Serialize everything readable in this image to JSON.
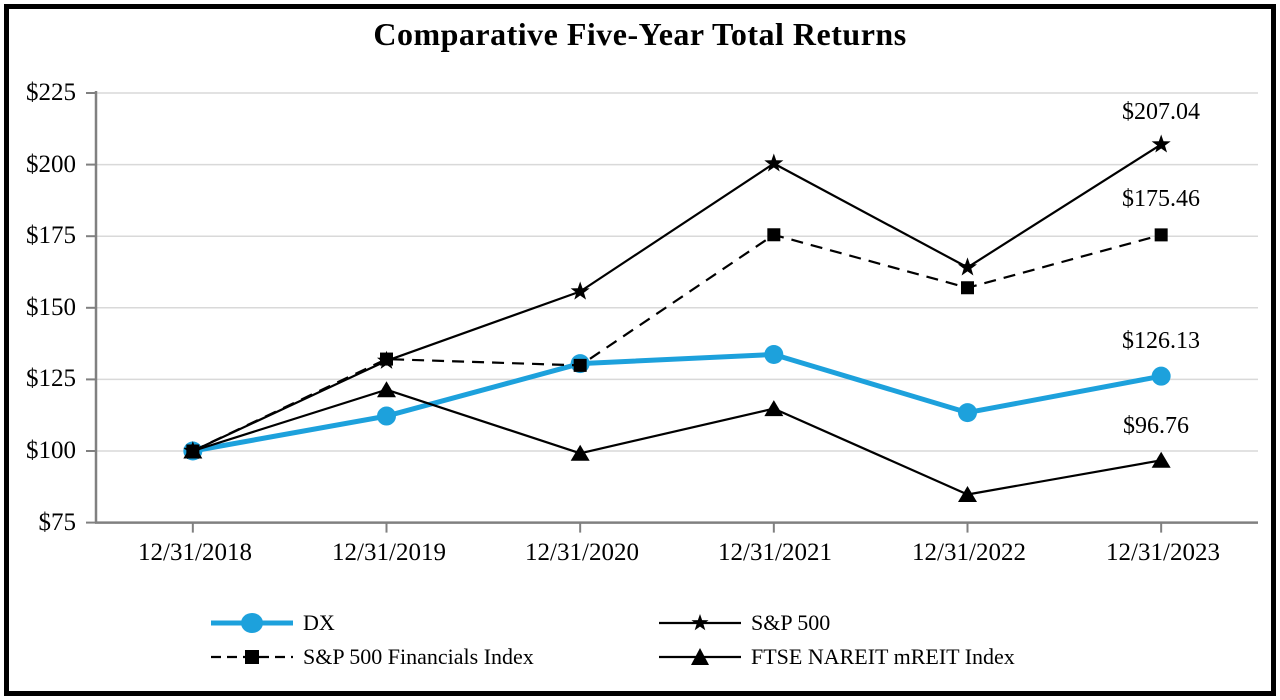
{
  "title": "Comparative Five-Year Total Returns",
  "chart_data": {
    "type": "line",
    "title": "Comparative Five-Year Total Returns",
    "x_labels": [
      "12/31/2018",
      "12/31/2019",
      "12/31/2020",
      "12/31/2021",
      "12/31/2022",
      "12/31/2023"
    ],
    "y_tick_labels": [
      "$225",
      "$200",
      "$175",
      "$150",
      "$125",
      "$100",
      "$75"
    ],
    "ylim": [
      75,
      225
    ],
    "y_step": 25,
    "grid": true,
    "legend_position": "bottom",
    "axis_color": "#808080",
    "gridline_color": "#D9D9D9",
    "series": [
      {
        "name": "DX",
        "color": "#1DA1DC",
        "line": "solid",
        "marker": "circle",
        "values": [
          100.0,
          112.2,
          130.5,
          133.7,
          113.4,
          126.13
        ]
      },
      {
        "name": "S&P 500",
        "color": "#000000",
        "line": "solid",
        "marker": "star",
        "values": [
          100.0,
          131.5,
          155.7,
          200.4,
          164.1,
          207.04
        ]
      },
      {
        "name": "S&P 500 Financials Index",
        "color": "#000000",
        "line": "dashed",
        "marker": "square",
        "values": [
          100.0,
          132.1,
          129.9,
          175.5,
          157.0,
          175.46
        ]
      },
      {
        "name": "FTSE NAREIT mREIT Index",
        "color": "#000000",
        "line": "solid",
        "marker": "triangle",
        "values": [
          100.0,
          121.4,
          99.2,
          114.8,
          84.8,
          96.76
        ]
      }
    ],
    "end_labels": [
      "$207.04",
      "$175.46",
      "$126.13",
      "$96.76"
    ]
  }
}
